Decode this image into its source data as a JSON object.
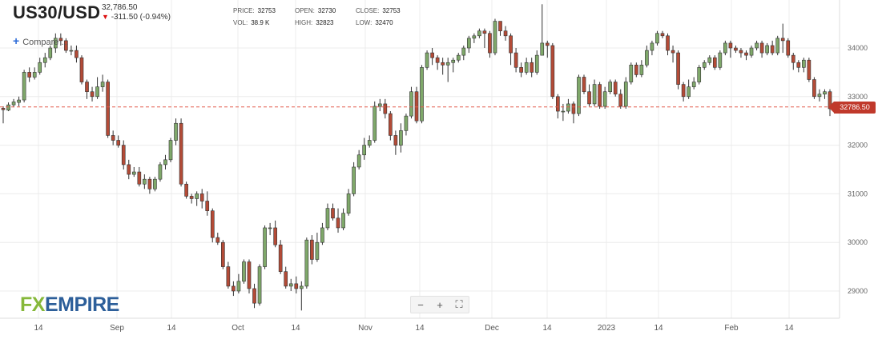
{
  "header": {
    "symbol": "US30/USD",
    "last_price": "32,786.50",
    "change_arrow": "▼",
    "change": "-311.50 (-0.94%)"
  },
  "stats": {
    "price_label": "PRICE:",
    "price": "32753",
    "vol_label": "VOL:",
    "vol": "38.9 K",
    "open_label": "OPEN:",
    "open": "32730",
    "high_label": "HIGH:",
    "high": "32823",
    "close_label": "CLOSE:",
    "close": "32753",
    "low_label": "LOW:",
    "low": "32470"
  },
  "compare_label": "Compare ...",
  "zoom": {
    "minus": "−",
    "plus": "+",
    "fit": "⛶"
  },
  "logo": {
    "part1": "FX",
    "part2": "EMPIRE"
  },
  "price_tag": "32786.50",
  "colors": {
    "up": "#7fa86a",
    "down": "#b34b37",
    "grid": "#ececec",
    "current_line": "#e35b4b"
  },
  "chart_data": {
    "type": "candlestick",
    "ylim": [
      28500,
      35000
    ],
    "y_ticks": [
      29000,
      30000,
      31000,
      32000,
      33000,
      34000
    ],
    "x_ticks": [
      "14",
      "Sep",
      "14",
      "Oct",
      "14",
      "Nov",
      "14",
      "Dec",
      "14",
      "2023",
      "14",
      "Feb",
      "14"
    ],
    "current_price": 32786.5,
    "candles": [
      [
        32760,
        32730,
        32450,
        32800
      ],
      [
        32720,
        32830,
        32700,
        32880
      ],
      [
        32830,
        32890,
        32780,
        32950
      ],
      [
        32880,
        32930,
        32800,
        33000
      ],
      [
        32930,
        33500,
        32880,
        33550
      ],
      [
        33500,
        33400,
        33300,
        33600
      ],
      [
        33400,
        33500,
        33350,
        33600
      ],
      [
        33500,
        33700,
        33450,
        33800
      ],
      [
        33700,
        33800,
        33600,
        33900
      ],
      [
        33800,
        34000,
        33750,
        34050
      ],
      [
        34000,
        34200,
        33900,
        34300
      ],
      [
        34200,
        34150,
        34050,
        34300
      ],
      [
        34150,
        33950,
        33900,
        34200
      ],
      [
        33950,
        33950,
        33850,
        34050
      ],
      [
        33950,
        33800,
        33700,
        34050
      ],
      [
        33800,
        33300,
        33250,
        33850
      ],
      [
        33300,
        33100,
        32950,
        33350
      ],
      [
        33100,
        33000,
        32900,
        33200
      ],
      [
        33000,
        33200,
        32950,
        33400
      ],
      [
        33200,
        33300,
        33100,
        33450
      ],
      [
        33300,
        32200,
        32150,
        33350
      ],
      [
        32200,
        32100,
        32000,
        32300
      ],
      [
        32100,
        32000,
        31950,
        32200
      ],
      [
        32000,
        31600,
        31500,
        32100
      ],
      [
        31600,
        31400,
        31300,
        31700
      ],
      [
        31400,
        31450,
        31350,
        31550
      ],
      [
        31450,
        31200,
        31150,
        31550
      ],
      [
        31200,
        31300,
        31100,
        31400
      ],
      [
        31300,
        31100,
        31000,
        31350
      ],
      [
        31100,
        31300,
        31050,
        31350
      ],
      [
        31300,
        31600,
        31250,
        31650
      ],
      [
        31600,
        31700,
        31500,
        31800
      ],
      [
        31700,
        32100,
        31650,
        32150
      ],
      [
        32100,
        32450,
        32000,
        32550
      ],
      [
        32450,
        31200,
        31150,
        32550
      ],
      [
        31200,
        30950,
        30900,
        31250
      ],
      [
        30950,
        30900,
        30800,
        31000
      ],
      [
        30900,
        31000,
        30750,
        31050
      ],
      [
        31000,
        30850,
        30700,
        31100
      ],
      [
        30850,
        30650,
        30550,
        31050
      ],
      [
        30650,
        30100,
        30000,
        30700
      ],
      [
        30100,
        30000,
        29950,
        30200
      ],
      [
        30000,
        29500,
        29450,
        30050
      ],
      [
        29500,
        29100,
        29050,
        29600
      ],
      [
        29100,
        29000,
        28900,
        29200
      ],
      [
        29000,
        29200,
        28950,
        29350
      ],
      [
        29200,
        29600,
        29150,
        29650
      ],
      [
        29600,
        29050,
        28950,
        29650
      ],
      [
        29050,
        28750,
        28650,
        29150
      ],
      [
        28750,
        29500,
        28700,
        29550
      ],
      [
        29500,
        30300,
        29450,
        30350
      ],
      [
        30300,
        30300,
        30150,
        30400
      ],
      [
        30300,
        29950,
        29900,
        30450
      ],
      [
        29950,
        29400,
        29350,
        30050
      ],
      [
        29400,
        29100,
        29050,
        29500
      ],
      [
        29100,
        29150,
        29000,
        29250
      ],
      [
        29150,
        29050,
        28950,
        29300
      ],
      [
        29050,
        29100,
        28600,
        29200
      ],
      [
        29100,
        30050,
        29050,
        30100
      ],
      [
        30050,
        29650,
        29550,
        30150
      ],
      [
        29650,
        30000,
        29600,
        30200
      ],
      [
        30000,
        30300,
        29950,
        30400
      ],
      [
        30300,
        30700,
        30250,
        30800
      ],
      [
        30700,
        30500,
        30450,
        30800
      ],
      [
        30500,
        30300,
        30200,
        30700
      ],
      [
        30300,
        30600,
        30250,
        30700
      ],
      [
        30600,
        31000,
        30550,
        31100
      ],
      [
        31000,
        31550,
        30950,
        31650
      ],
      [
        31550,
        31800,
        31500,
        31900
      ],
      [
        31800,
        32000,
        31700,
        32150
      ],
      [
        32000,
        32100,
        31950,
        32200
      ],
      [
        32100,
        32800,
        32050,
        32900
      ],
      [
        32800,
        32850,
        32700,
        32950
      ],
      [
        32850,
        32650,
        32550,
        32950
      ],
      [
        32650,
        32200,
        32100,
        32700
      ],
      [
        32200,
        32000,
        31800,
        32300
      ],
      [
        32000,
        32300,
        31850,
        32450
      ],
      [
        32300,
        32600,
        32200,
        32650
      ],
      [
        32600,
        33100,
        32550,
        33200
      ],
      [
        33100,
        32500,
        32450,
        33200
      ],
      [
        32500,
        33600,
        32450,
        33650
      ],
      [
        33600,
        33900,
        33550,
        33950
      ],
      [
        33900,
        33800,
        33650,
        34000
      ],
      [
        33800,
        33700,
        33550,
        33850
      ],
      [
        33700,
        33650,
        33450,
        33800
      ],
      [
        33650,
        33700,
        33300,
        33800
      ],
      [
        33700,
        33750,
        33500,
        33800
      ],
      [
        33750,
        33850,
        33700,
        33900
      ],
      [
        33850,
        34000,
        33750,
        34050
      ],
      [
        34000,
        34200,
        33900,
        34250
      ],
      [
        34200,
        34250,
        34100,
        34300
      ],
      [
        34250,
        34350,
        34200,
        34400
      ],
      [
        34350,
        34300,
        34000,
        34400
      ],
      [
        34300,
        33900,
        33800,
        34350
      ],
      [
        33900,
        34550,
        33850,
        34600
      ],
      [
        34550,
        34350,
        34250,
        34550
      ],
      [
        34350,
        34250,
        34150,
        34450
      ],
      [
        34250,
        33900,
        33650,
        34300
      ],
      [
        33900,
        33600,
        33500,
        34000
      ],
      [
        33600,
        33500,
        33400,
        33700
      ],
      [
        33500,
        33700,
        33450,
        33800
      ],
      [
        33700,
        33500,
        33400,
        33800
      ],
      [
        33500,
        33850,
        33450,
        33950
      ],
      [
        33850,
        34100,
        33900,
        34900
      ],
      [
        34100,
        34050,
        33800,
        34150
      ],
      [
        34050,
        33000,
        32950,
        34100
      ],
      [
        33000,
        32700,
        32550,
        33050
      ],
      [
        32700,
        32700,
        32500,
        32850
      ],
      [
        32700,
        32850,
        32650,
        32950
      ],
      [
        32850,
        32650,
        32450,
        32900
      ],
      [
        32650,
        33400,
        32600,
        33450
      ],
      [
        33400,
        33100,
        33050,
        33450
      ],
      [
        33100,
        32850,
        32800,
        33250
      ],
      [
        32850,
        33250,
        32800,
        33350
      ],
      [
        33250,
        32800,
        32750,
        33300
      ],
      [
        32800,
        33100,
        32750,
        33200
      ],
      [
        33100,
        33300,
        33050,
        33350
      ],
      [
        33300,
        33050,
        33000,
        33350
      ],
      [
        33050,
        32800,
        32750,
        33150
      ],
      [
        32800,
        33300,
        32750,
        33400
      ],
      [
        33300,
        33650,
        33250,
        33700
      ],
      [
        33650,
        33450,
        33400,
        33700
      ],
      [
        33450,
        33650,
        33400,
        33750
      ],
      [
        33650,
        33950,
        33600,
        34050
      ],
      [
        33950,
        34100,
        33850,
        34150
      ],
      [
        34100,
        34300,
        34050,
        34350
      ],
      [
        34300,
        34250,
        34200,
        34350
      ],
      [
        34250,
        33950,
        33850,
        34300
      ],
      [
        33950,
        33900,
        33700,
        34050
      ],
      [
        33900,
        33250,
        33150,
        33950
      ],
      [
        33250,
        33000,
        32900,
        33300
      ],
      [
        33000,
        33200,
        32950,
        33350
      ],
      [
        33200,
        33300,
        33150,
        33400
      ],
      [
        33300,
        33600,
        33250,
        33650
      ],
      [
        33600,
        33700,
        33550,
        33750
      ],
      [
        33700,
        33800,
        33650,
        33850
      ],
      [
        33800,
        33600,
        33550,
        33850
      ],
      [
        33600,
        33900,
        33550,
        33950
      ],
      [
        33900,
        34100,
        33850,
        34150
      ],
      [
        34100,
        34000,
        33800,
        34150
      ],
      [
        34000,
        33950,
        33900,
        34050
      ],
      [
        33950,
        33900,
        33800,
        34000
      ],
      [
        33900,
        33850,
        33750,
        33950
      ],
      [
        33850,
        34000,
        33800,
        34050
      ],
      [
        34000,
        34100,
        33950,
        34150
      ],
      [
        34100,
        33900,
        33800,
        34150
      ],
      [
        33900,
        34050,
        33850,
        34100
      ],
      [
        34050,
        33900,
        33850,
        34150
      ],
      [
        33900,
        34200,
        33850,
        34250
      ],
      [
        34200,
        34150,
        33900,
        34500
      ],
      [
        34150,
        33850,
        33800,
        34200
      ],
      [
        33850,
        33700,
        33550,
        33900
      ],
      [
        33700,
        33600,
        33500,
        33750
      ],
      [
        33600,
        33750,
        33500,
        33800
      ],
      [
        33750,
        33350,
        33300,
        33800
      ],
      [
        33350,
        33000,
        32950,
        33400
      ],
      [
        33000,
        33050,
        32900,
        33150
      ],
      [
        33050,
        33100,
        32950,
        33150
      ],
      [
        33100,
        32750,
        32600,
        33150
      ]
    ]
  }
}
